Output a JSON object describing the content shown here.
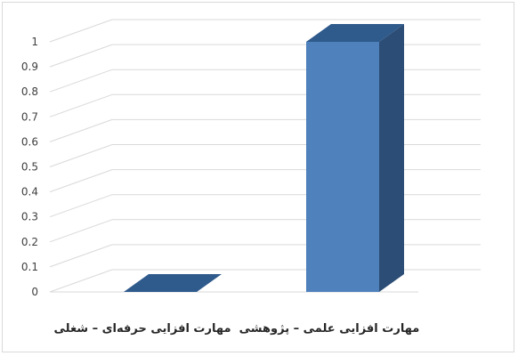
{
  "chart_data": {
    "type": "bar",
    "style": "3d-column",
    "categories": [
      "مهارت افزایی علمی – پژوهشی",
      "مهارت افزایی حرفه‌ای – شغلی"
    ],
    "values": [
      1,
      0
    ],
    "ylim": [
      0,
      1
    ],
    "yticks": [
      "0",
      "0.1",
      "0.2",
      "0.3",
      "0.4",
      "0.5",
      "0.6",
      "0.7",
      "0.8",
      "0.9",
      "1"
    ],
    "grid": true,
    "legend": "none",
    "colors": {
      "bar_front": "#4f81bd",
      "bar_side": "#2c4d75",
      "bar_top": "#2f5a8c",
      "gridline": "#d9d9d9"
    }
  }
}
